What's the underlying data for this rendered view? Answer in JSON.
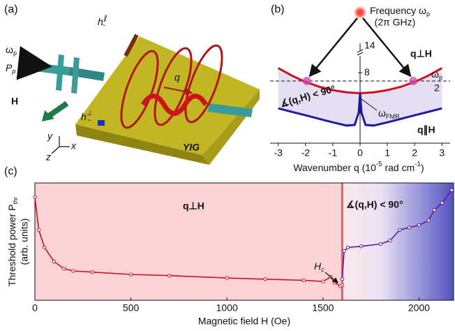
{
  "diagram": {
    "panel": "(a)",
    "omega": {
      "text": "ω",
      "sub": "p"
    },
    "power": {
      "text": "P",
      "sub": "p"
    },
    "field": "H",
    "h_par": {
      "text": "h",
      "sup": "∥",
      "sub": "~"
    },
    "h_perp": {
      "text": "h",
      "sup": "⊥",
      "sub": "~"
    },
    "wavevector": "q",
    "material": "YIG",
    "axes": [
      "x",
      "y",
      "z"
    ]
  },
  "chart_data": [
    {
      "type": "line",
      "panel": "(b)",
      "source_label": {
        "text": "Frequency ω",
        "sub": "p"
      },
      "source_units": "(2π GHz)",
      "xlabel": [
        "Wavenumber q (10",
        "-5",
        " rad cm",
        "-1",
        ")"
      ],
      "x": [
        -3,
        -2.5,
        -2,
        -1.5,
        -1,
        -0.5,
        -0.2,
        -0.05,
        0,
        0.05,
        0.2,
        0.5,
        1,
        1.5,
        2,
        2.5,
        3
      ],
      "xlim": [
        -3.3,
        3.3
      ],
      "xticks": [
        -3,
        -2,
        -1,
        0,
        1,
        2,
        3
      ],
      "ylim": [
        2,
        10.5
      ],
      "yticks": [
        8
      ],
      "axis_break_label": "14",
      "half_pump": 7.29,
      "half_pump_label": {
        "num": "ω",
        "num_sub": "p",
        "den": "2"
      },
      "fmr_label": {
        "text": "ω",
        "sub": "FMR"
      },
      "angle_label": "∡(q,H) < 90°",
      "pump_q": [
        -1.95,
        1.95
      ],
      "series": [
        {
          "name": "q⊥H",
          "color": "#cc1122",
          "values": [
            8.39,
            7.75,
            7.21,
            6.8,
            6.51,
            6.33,
            6.28,
            6.27,
            6.27,
            6.27,
            6.28,
            6.33,
            6.51,
            6.8,
            7.21,
            7.75,
            8.39
          ]
        },
        {
          "name": "q∥H",
          "color": "#1c1c9c",
          "values": [
            4.96,
            4.66,
            4.37,
            4.07,
            3.77,
            3.5,
            3.55,
            4.6,
            6.27,
            4.6,
            3.55,
            3.5,
            3.77,
            4.07,
            4.37,
            4.66,
            4.96
          ]
        }
      ]
    },
    {
      "type": "line",
      "panel": "(c)",
      "xlabel": "Magnetic field H (Oe)",
      "ylabel": {
        "text": "Threshold power P",
        "sub": "thr"
      },
      "ylabel2": "(arb. units)",
      "x": [
        0,
        20,
        50,
        100,
        150,
        200,
        300,
        500,
        700,
        1000,
        1200,
        1400,
        1500,
        1540,
        1560,
        1590,
        1600,
        1610,
        1630,
        1700,
        1800,
        1850,
        1900,
        1950,
        2000,
        2050,
        2080,
        2120,
        2170
      ],
      "xlim": [
        0,
        2180
      ],
      "xticks": [
        0,
        500,
        1000,
        1500,
        2000
      ],
      "ylim": [
        0,
        1
      ],
      "critical_field": 1600,
      "critical_label": {
        "text": "H",
        "sub": "c"
      },
      "region_labels": [
        "q⊥H",
        "∡(q,H) < 90°"
      ],
      "series": [
        {
          "name": "q⊥H",
          "color": "#cc1122",
          "values": [
            0.88,
            0.6,
            0.45,
            0.33,
            0.27,
            0.25,
            0.24,
            0.22,
            0.21,
            0.19,
            0.18,
            0.17,
            0.16,
            0.2,
            0.15,
            0.12,
            0.13,
            null,
            null,
            null,
            null,
            null,
            null,
            null,
            null,
            null,
            null,
            null,
            null
          ]
        },
        {
          "name": "∡(q,H) < 90°",
          "color": "#5a1a9e",
          "values": [
            null,
            null,
            null,
            null,
            null,
            null,
            null,
            null,
            null,
            null,
            null,
            null,
            null,
            null,
            null,
            null,
            0.18,
            0.42,
            0.45,
            0.46,
            0.48,
            0.51,
            0.6,
            0.62,
            0.64,
            0.68,
            0.77,
            0.83,
            0.94
          ]
        }
      ]
    }
  ]
}
